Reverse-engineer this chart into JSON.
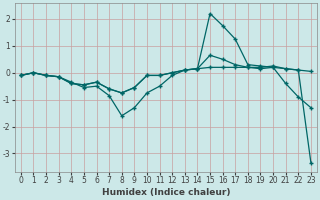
{
  "xlabel": "Humidex (Indice chaleur)",
  "xlim": [
    -0.5,
    23.5
  ],
  "ylim": [
    -3.7,
    2.6
  ],
  "x": [
    0,
    1,
    2,
    3,
    4,
    5,
    6,
    7,
    8,
    9,
    10,
    11,
    12,
    13,
    14,
    15,
    16,
    17,
    18,
    19,
    20,
    21,
    22,
    23
  ],
  "line1": [
    -0.1,
    0.0,
    -0.1,
    -0.15,
    -0.4,
    -0.45,
    -0.35,
    -0.6,
    -0.75,
    -0.55,
    -0.1,
    -0.1,
    0.0,
    0.1,
    0.15,
    2.2,
    1.75,
    1.25,
    0.3,
    0.25,
    0.2,
    0.15,
    0.1,
    0.05
  ],
  "line2": [
    -0.1,
    0.0,
    -0.1,
    -0.15,
    -0.4,
    -0.45,
    -0.35,
    -0.6,
    -0.75,
    -0.55,
    -0.1,
    -0.1,
    0.0,
    0.1,
    0.15,
    0.65,
    0.5,
    0.3,
    0.2,
    0.15,
    0.2,
    -0.4,
    -0.9,
    -1.3
  ],
  "line3": [
    -0.1,
    0.0,
    -0.1,
    -0.15,
    -0.35,
    -0.55,
    -0.5,
    -0.85,
    -1.6,
    -1.3,
    -0.75,
    -0.5,
    -0.1,
    0.1,
    0.15,
    0.2,
    0.2,
    0.2,
    0.2,
    0.2,
    0.25,
    0.15,
    0.1,
    -3.35
  ],
  "bg_color": "#cce8e8",
  "line_color": "#006666",
  "grid_color_major": "#c8a0a0",
  "tick_color": "#404040",
  "xticks": [
    0,
    1,
    2,
    3,
    4,
    5,
    6,
    7,
    8,
    9,
    10,
    11,
    12,
    13,
    14,
    15,
    16,
    17,
    18,
    19,
    20,
    21,
    22,
    23
  ],
  "yticks": [
    -3,
    -2,
    -1,
    0,
    1,
    2
  ],
  "label_fontsize": 6.5,
  "tick_fontsize": 5.5
}
